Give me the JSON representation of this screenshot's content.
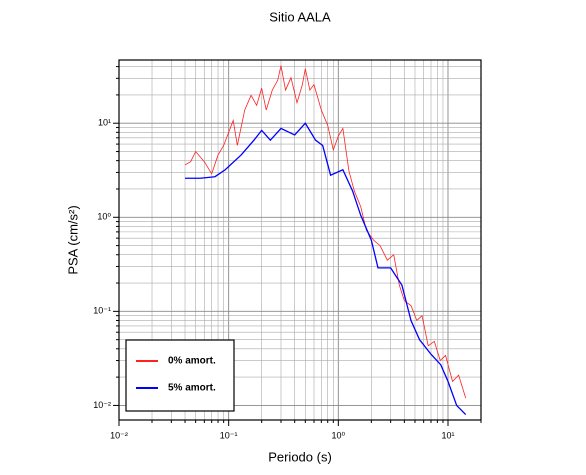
{
  "chart_data": {
    "type": "line",
    "title": "Sitio AALA",
    "x_label": "Periodo (s)",
    "y_label": "PSA (cm/s²)",
    "log_x": true,
    "log_y": true,
    "grid": true,
    "legend": "lower left",
    "xlim": [
      0.01,
      20
    ],
    "ylim": [
      0.007,
      47
    ],
    "xticks": [
      {
        "value": 0.01,
        "label": "10⁻²"
      },
      {
        "value": 0.1,
        "label": "10⁻¹"
      },
      {
        "value": 1,
        "label": "10⁰"
      },
      {
        "value": 10,
        "label": "10¹"
      }
    ],
    "yticks": [
      {
        "value": 0.01,
        "label": "10⁻²"
      },
      {
        "value": 0.1,
        "label": "10⁻¹"
      },
      {
        "value": 1,
        "label": "10⁰"
      },
      {
        "value": 10,
        "label": "10¹"
      }
    ],
    "series": [
      {
        "name": "0% amort.",
        "color": "#ff2020",
        "x": [
          0.04,
          0.045,
          0.05,
          0.06,
          0.07,
          0.08,
          0.09,
          0.1,
          0.11,
          0.12,
          0.14,
          0.16,
          0.18,
          0.2,
          0.22,
          0.25,
          0.28,
          0.3,
          0.33,
          0.37,
          0.42,
          0.47,
          0.5,
          0.55,
          0.6,
          0.7,
          0.8,
          0.9,
          1.0,
          1.1,
          1.25,
          1.4,
          1.6,
          1.8,
          2.1,
          2.4,
          2.8,
          3.2,
          3.6,
          4.0,
          4.6,
          5.2,
          5.8,
          6.6,
          7.5,
          8.5,
          9.5,
          11,
          12.5,
          14.5
        ],
        "values": [
          3.6,
          3.9,
          5,
          3.9,
          2.9,
          4.6,
          5.8,
          8,
          10.7,
          5.8,
          13.8,
          19.8,
          15.5,
          23.6,
          13.8,
          22.5,
          28.6,
          41,
          22.5,
          30.5,
          16.5,
          25.7,
          38,
          22.5,
          25.7,
          13.8,
          9.5,
          5.2,
          7.3,
          8.8,
          3.1,
          1.9,
          1.3,
          0.73,
          0.57,
          0.5,
          0.35,
          0.4,
          0.19,
          0.13,
          0.115,
          0.08,
          0.09,
          0.043,
          0.048,
          0.03,
          0.034,
          0.018,
          0.021,
          0.012
        ]
      },
      {
        "name": "5% amort.",
        "color": "#0000ff",
        "x": [
          0.04,
          0.055,
          0.075,
          0.093,
          0.13,
          0.17,
          0.2,
          0.24,
          0.3,
          0.4,
          0.5,
          0.62,
          0.72,
          0.85,
          1.1,
          1.35,
          1.6,
          2,
          2.3,
          3,
          3.8,
          4.6,
          5.5,
          7,
          8.6,
          10,
          12,
          14.5
        ],
        "values": [
          2.6,
          2.6,
          2.7,
          3.2,
          4.6,
          6.6,
          8.4,
          6.6,
          8.8,
          7.5,
          10,
          6.6,
          5.8,
          2.8,
          3.2,
          1.9,
          1.05,
          0.57,
          0.29,
          0.29,
          0.19,
          0.08,
          0.05,
          0.035,
          0.027,
          0.018,
          0.01,
          0.008
        ]
      }
    ]
  }
}
